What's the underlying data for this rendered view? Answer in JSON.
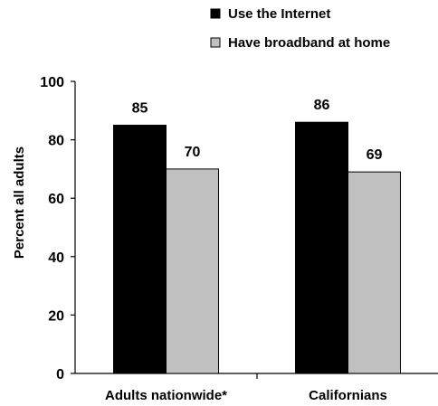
{
  "chart_data": {
    "type": "bar",
    "categories": [
      "Adults nationwide*",
      "Californians"
    ],
    "series": [
      {
        "name": "Use the Internet",
        "values": [
          85,
          86
        ],
        "color": "#000000"
      },
      {
        "name": "Have broadband at home",
        "values": [
          70,
          69
        ],
        "color": "#c0c0c0"
      }
    ],
    "ylabel": "Percent all adults",
    "xlabel": "",
    "ylim": [
      0,
      100
    ],
    "yticks": [
      0,
      20,
      40,
      60,
      80,
      100
    ],
    "grid": false,
    "legend_position": "top-right",
    "data_labels": true
  }
}
